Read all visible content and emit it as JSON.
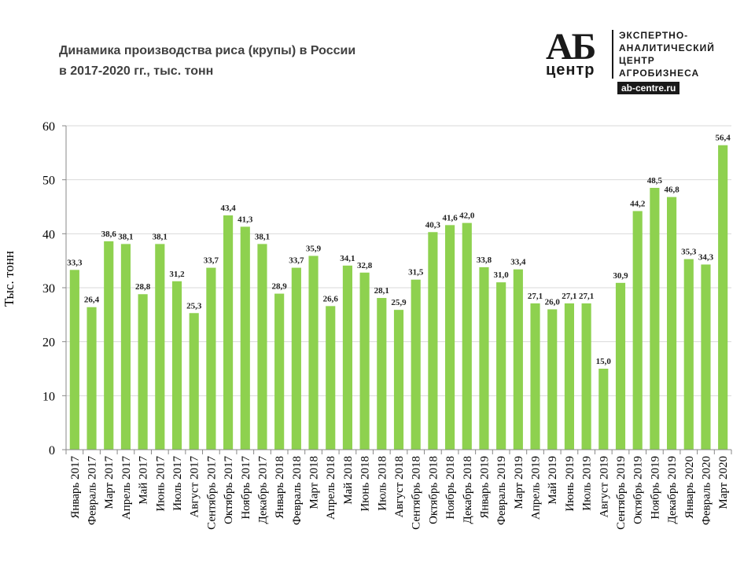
{
  "title": {
    "line1": "Динамика производства  риса (крупы) в России",
    "line2": "в 2017-2020 гг., тыс. тонн"
  },
  "logo": {
    "mark": "АБ",
    "mark_sub": "центр",
    "line1": "ЭКСПЕРТНО-",
    "line2": "АНАЛИТИЧЕСКИЙ",
    "line3": "ЦЕНТР",
    "line4": "АГРОБИЗНЕСА",
    "site": "ab-centre.ru"
  },
  "colors": {
    "bar": "#8ed14f",
    "axis": "#888888",
    "grid": "#d9d9d9"
  },
  "chart_data": {
    "type": "bar",
    "title": "Динамика производства  риса (крупы) в России в 2017-2020 гг., тыс. тонн",
    "xlabel": "",
    "ylabel": "Тыс. тонн",
    "ylim": [
      0,
      60
    ],
    "yticks": [
      0,
      10,
      20,
      30,
      40,
      50,
      60
    ],
    "categories": [
      "Январь 2017",
      "Февраль 2017",
      "Март 2017",
      "Апрель 2017",
      "Май 2017",
      "Июнь 2017",
      "Июль 2017",
      "Август 2017",
      "Сентябрь 2017",
      "Октябрь 2017",
      "Ноябрь 2017",
      "Декабрь 2017",
      "Январь 2018",
      "Февраль 2018",
      "Март 2018",
      "Апрель 2018",
      "Май 2018",
      "Июнь 2018",
      "Июль 2018",
      "Август 2018",
      "Сентябрь 2018",
      "Октябрь 2018",
      "Ноябрь 2018",
      "Декабрь 2018",
      "Январь 2019",
      "Февраль 2019",
      "Март 2019",
      "Апрель 2019",
      "Май 2019",
      "Июнь 2019",
      "Июль 2019",
      "Август 2019",
      "Сентябрь 2019",
      "Октябрь 2019",
      "Ноябрь 2019",
      "Декабрь 2019",
      "Январь 2020",
      "Февраль 2020",
      "Март 2020"
    ],
    "values": [
      33.3,
      26.4,
      38.6,
      38.1,
      28.8,
      38.1,
      31.2,
      25.3,
      33.7,
      43.4,
      41.3,
      38.1,
      28.9,
      33.7,
      35.9,
      26.6,
      34.1,
      32.8,
      28.1,
      25.9,
      31.5,
      40.3,
      41.6,
      42.0,
      33.8,
      31.0,
      33.4,
      27.1,
      26.0,
      27.1,
      27.1,
      15.0,
      30.9,
      44.2,
      48.5,
      46.8,
      35.3,
      34.3,
      56.4
    ],
    "labels": [
      "33,3",
      "26,4",
      "38,6",
      "38,1",
      "28,8",
      "38,1",
      "31,2",
      "25,3",
      "33,7",
      "43,4",
      "41,3",
      "38,1",
      "28,9",
      "33,7",
      "35,9",
      "26,6",
      "34,1",
      "32,8",
      "28,1",
      "25,9",
      "31,5",
      "40,3",
      "41,6",
      "42,0",
      "33,8",
      "31,0",
      "33,4",
      "27,1",
      "26,0",
      "27,1",
      "27,1",
      "15,0",
      "30,9",
      "44,2",
      "48,5",
      "46,8",
      "35,3",
      "34,3",
      "56,4"
    ],
    "grid": true,
    "legend": "none"
  }
}
